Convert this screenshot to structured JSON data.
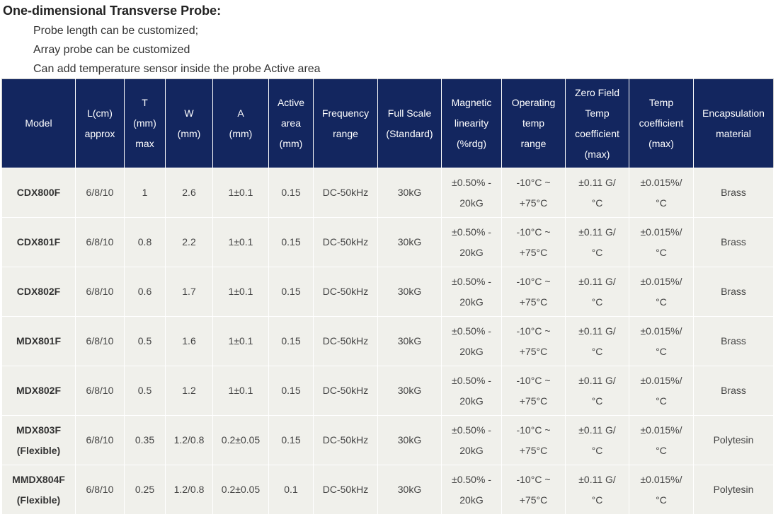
{
  "title": "One-dimensional Transverse Probe:",
  "notes": [
    "Probe length can be customized;",
    "Array probe can be customized",
    "Can add temperature sensor inside the probe  Active area"
  ],
  "table": {
    "headers": [
      [
        "Model"
      ],
      [
        "L(cm)",
        "approx"
      ],
      [
        "T",
        "(mm)",
        "max"
      ],
      [
        "W",
        "(mm)"
      ],
      [
        "A",
        "(mm)"
      ],
      [
        "Active",
        "area",
        "(mm)"
      ],
      [
        "Frequency",
        "range"
      ],
      [
        "Full Scale",
        "(Standard)"
      ],
      [
        "Magnetic",
        "linearity",
        "(%rdg)"
      ],
      [
        "Operating",
        "temp",
        "range"
      ],
      [
        "Zero Field",
        "Temp",
        "coefficient",
        "(max)"
      ],
      [
        "Temp",
        "coefficient",
        "(max)"
      ],
      [
        "Encapsulation",
        "material"
      ]
    ],
    "rows": [
      {
        "model": [
          "CDX800F"
        ],
        "length": "6/8/10",
        "t": "1",
        "w": "2.6",
        "a": "1±0.1",
        "active": "0.15",
        "freq": "DC-50kHz",
        "fullscale": "30kG",
        "linearity": [
          "±0.50% -",
          "20kG"
        ],
        "optemp": [
          "-10°C ~",
          "+75°C"
        ],
        "zerofield": [
          "±0.11 G/",
          "°C"
        ],
        "tempcoef": [
          "±0.015%/",
          "°C"
        ],
        "material": "Brass"
      },
      {
        "model": [
          "CDX801F"
        ],
        "length": "6/8/10",
        "t": "0.8",
        "w": "2.2",
        "a": "1±0.1",
        "active": "0.15",
        "freq": "DC-50kHz",
        "fullscale": "30kG",
        "linearity": [
          "±0.50% -",
          "20kG"
        ],
        "optemp": [
          "-10°C ~",
          "+75°C"
        ],
        "zerofield": [
          "±0.11 G/",
          "°C"
        ],
        "tempcoef": [
          "±0.015%/",
          "°C"
        ],
        "material": "Brass"
      },
      {
        "model": [
          "CDX802F"
        ],
        "length": "6/8/10",
        "t": "0.6",
        "w": "1.7",
        "a": "1±0.1",
        "active": "0.15",
        "freq": "DC-50kHz",
        "fullscale": "30kG",
        "linearity": [
          "±0.50% -",
          "20kG"
        ],
        "optemp": [
          "-10°C ~",
          "+75°C"
        ],
        "zerofield": [
          "±0.11 G/",
          "°C"
        ],
        "tempcoef": [
          "±0.015%/",
          "°C"
        ],
        "material": "Brass"
      },
      {
        "model": [
          "MDX801F"
        ],
        "length": "6/8/10",
        "t": "0.5",
        "w": "1.6",
        "a": "1±0.1",
        "active": "0.15",
        "freq": "DC-50kHz",
        "fullscale": "30kG",
        "linearity": [
          "±0.50% -",
          "20kG"
        ],
        "optemp": [
          "-10°C ~",
          "+75°C"
        ],
        "zerofield": [
          "±0.11 G/",
          "°C"
        ],
        "tempcoef": [
          "±0.015%/",
          "°C"
        ],
        "material": "Brass"
      },
      {
        "model": [
          "MDX802F"
        ],
        "length": "6/8/10",
        "t": "0.5",
        "w": "1.2",
        "a": "1±0.1",
        "active": "0.15",
        "freq": "DC-50kHz",
        "fullscale": "30kG",
        "linearity": [
          "±0.50% -",
          "20kG"
        ],
        "optemp": [
          "-10°C ~",
          "+75°C"
        ],
        "zerofield": [
          "±0.11 G/",
          "°C"
        ],
        "tempcoef": [
          "±0.015%/",
          "°C"
        ],
        "material": "Brass"
      },
      {
        "model": [
          "MDX803F",
          "(Flexible)"
        ],
        "length": "6/8/10",
        "t": "0.35",
        "w": "1.2/0.8",
        "a": "0.2±0.05",
        "active": "0.15",
        "freq": "DC-50kHz",
        "fullscale": "30kG",
        "linearity": [
          "±0.50% -",
          "20kG"
        ],
        "optemp": [
          "-10°C ~",
          "+75°C"
        ],
        "zerofield": [
          "±0.11 G/",
          "°C"
        ],
        "tempcoef": [
          "±0.015%/",
          "°C"
        ],
        "material": "Polytesin"
      },
      {
        "model": [
          "MMDX804F",
          "(Flexible)"
        ],
        "length": "6/8/10",
        "t": "0.25",
        "w": "1.2/0.8",
        "a": "0.2±0.05",
        "active": "0.1",
        "freq": "DC-50kHz",
        "fullscale": "30kG",
        "linearity": [
          "±0.50% -",
          "20kG"
        ],
        "optemp": [
          "-10°C ~",
          "+75°C"
        ],
        "zerofield": [
          "±0.11 G/",
          "°C"
        ],
        "tempcoef": [
          "±0.015%/",
          "°C"
        ],
        "material": "Polytesin"
      }
    ]
  }
}
